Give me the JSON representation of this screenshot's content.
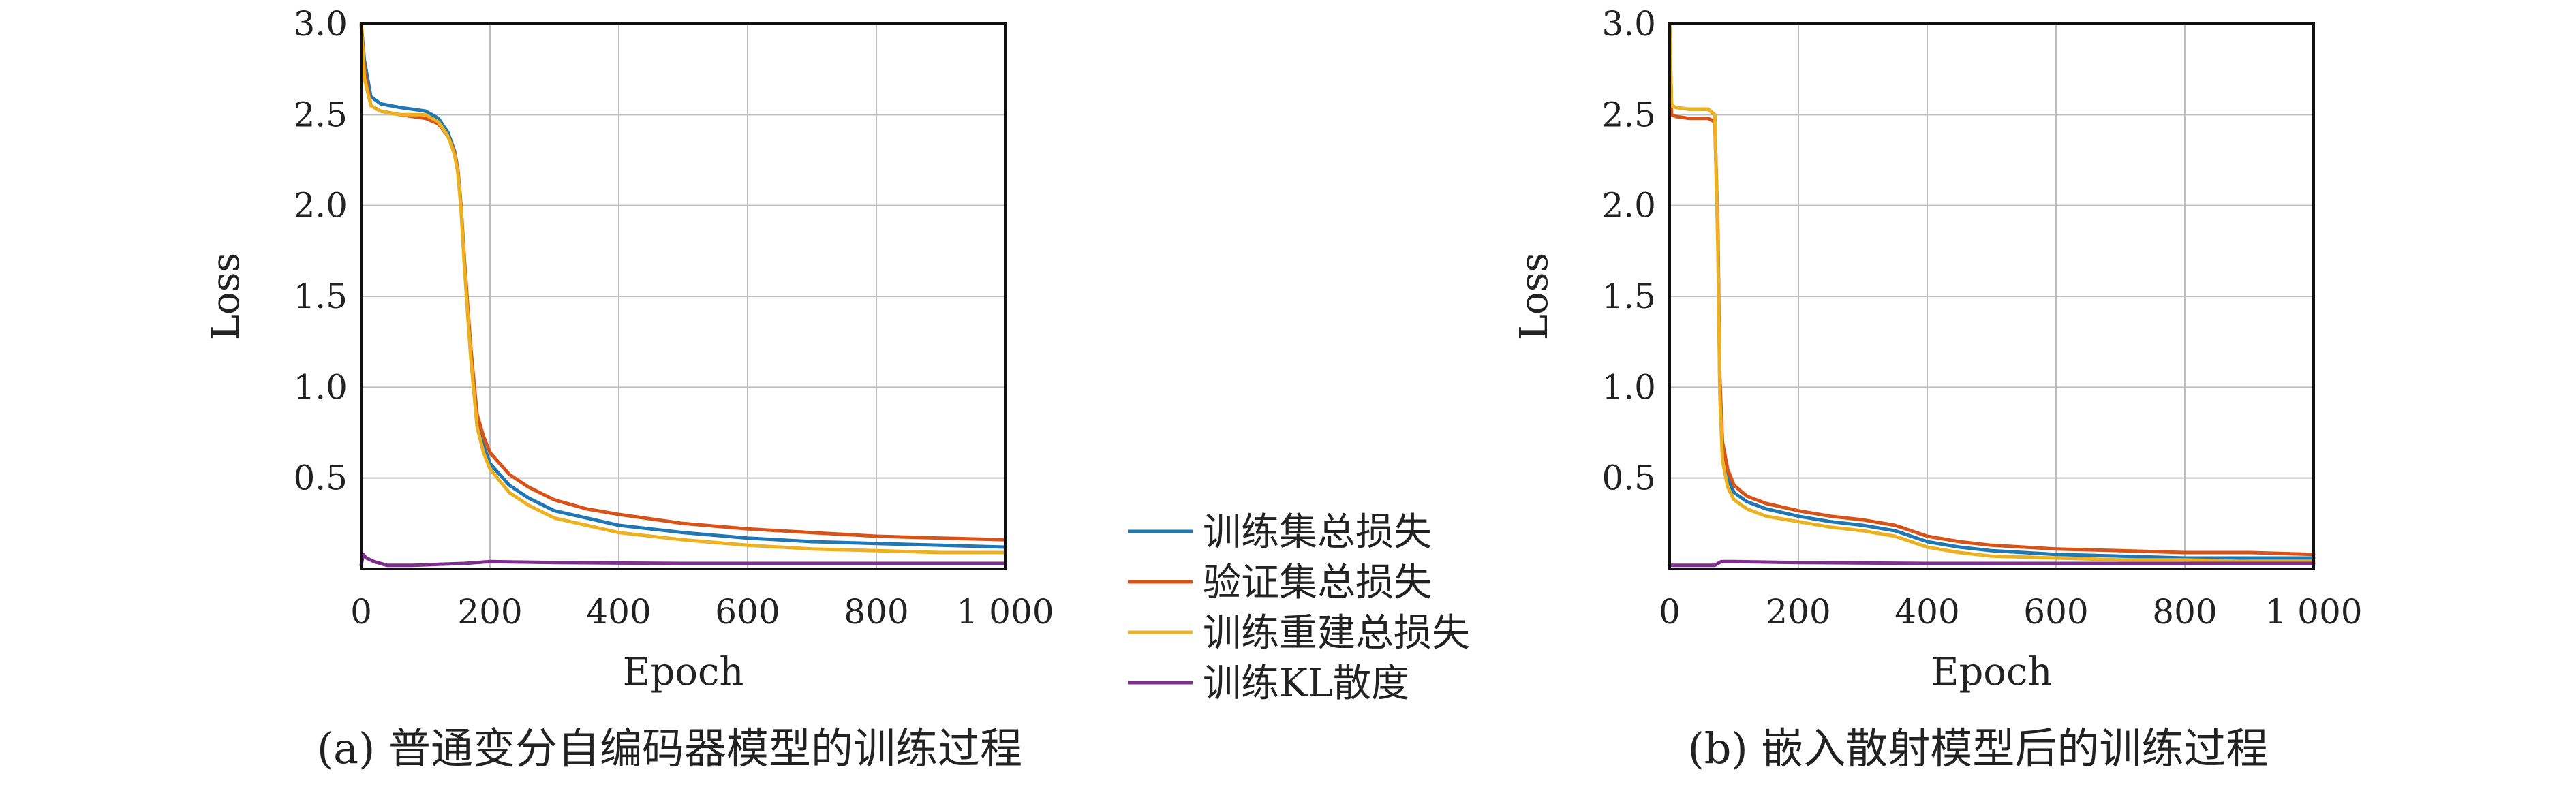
{
  "legend": [
    {
      "label": "训练集总损失",
      "color": "#1f77b4"
    },
    {
      "label": "验证集总损失",
      "color": "#d95319"
    },
    {
      "label": "训练重建总损失",
      "color": "#edb120"
    },
    {
      "label": "训练KL散度",
      "color": "#7e2f8e"
    }
  ],
  "chart_data": [
    {
      "type": "line",
      "caption": "(a) 普通变分自编码器模型的训练过程",
      "xlabel": "Epoch",
      "ylabel": "Loss",
      "xlim": [
        0,
        1000
      ],
      "ylim": [
        0,
        3.0
      ],
      "xticks": [
        0,
        200,
        400,
        600,
        800,
        1000
      ],
      "xtick_labels": [
        "0",
        "200",
        "400",
        "600",
        "800",
        "1 000"
      ],
      "yticks": [
        0.5,
        1.0,
        1.5,
        2.0,
        2.5,
        3.0
      ],
      "ytick_labels": [
        "0.5",
        "1.0",
        "1.5",
        "2.0",
        "2.5",
        "3.0"
      ],
      "grid": true,
      "series": [
        {
          "name": "训练集总损失",
          "color": "#1f77b4",
          "x": [
            0,
            5,
            15,
            30,
            60,
            100,
            120,
            135,
            145,
            150,
            155,
            160,
            165,
            170,
            175,
            180,
            190,
            200,
            230,
            260,
            300,
            350,
            400,
            500,
            600,
            700,
            800,
            900,
            1000
          ],
          "y": [
            3.0,
            2.8,
            2.6,
            2.56,
            2.54,
            2.52,
            2.48,
            2.4,
            2.3,
            2.2,
            2.0,
            1.7,
            1.45,
            1.2,
            1.0,
            0.82,
            0.68,
            0.58,
            0.46,
            0.39,
            0.32,
            0.28,
            0.24,
            0.2,
            0.17,
            0.15,
            0.14,
            0.13,
            0.12
          ]
        },
        {
          "name": "验证集总损失",
          "color": "#d95319",
          "x": [
            0,
            5,
            15,
            30,
            60,
            100,
            120,
            135,
            145,
            150,
            155,
            160,
            165,
            170,
            175,
            180,
            190,
            200,
            230,
            260,
            300,
            350,
            400,
            500,
            600,
            700,
            800,
            900,
            1000
          ],
          "y": [
            3.0,
            2.75,
            2.55,
            2.52,
            2.5,
            2.48,
            2.45,
            2.38,
            2.29,
            2.2,
            2.0,
            1.72,
            1.47,
            1.23,
            1.03,
            0.85,
            0.73,
            0.64,
            0.52,
            0.45,
            0.38,
            0.33,
            0.3,
            0.25,
            0.22,
            0.2,
            0.18,
            0.17,
            0.16
          ]
        },
        {
          "name": "训练重建总损失",
          "color": "#edb120",
          "x": [
            0,
            5,
            15,
            30,
            60,
            100,
            120,
            135,
            145,
            150,
            155,
            160,
            165,
            170,
            175,
            180,
            190,
            200,
            230,
            260,
            300,
            350,
            400,
            500,
            600,
            700,
            800,
            900,
            1000
          ],
          "y": [
            3.0,
            2.7,
            2.55,
            2.52,
            2.5,
            2.5,
            2.46,
            2.38,
            2.28,
            2.18,
            1.98,
            1.68,
            1.42,
            1.17,
            0.97,
            0.78,
            0.64,
            0.55,
            0.42,
            0.35,
            0.28,
            0.24,
            0.2,
            0.16,
            0.13,
            0.11,
            0.1,
            0.09,
            0.09
          ]
        },
        {
          "name": "训练KL散度",
          "color": "#7e2f8e",
          "x": [
            0,
            3,
            8,
            20,
            40,
            80,
            120,
            160,
            200,
            300,
            500,
            700,
            1000
          ],
          "y": [
            0.02,
            0.08,
            0.06,
            0.04,
            0.02,
            0.02,
            0.025,
            0.03,
            0.04,
            0.035,
            0.03,
            0.03,
            0.03
          ]
        }
      ]
    },
    {
      "type": "line",
      "caption": "(b) 嵌入散射模型后的训练过程",
      "xlabel": "Epoch",
      "ylabel": "Loss",
      "xlim": [
        0,
        1000
      ],
      "ylim": [
        0,
        3.0
      ],
      "xticks": [
        0,
        200,
        400,
        600,
        800,
        1000
      ],
      "xtick_labels": [
        "0",
        "200",
        "400",
        "600",
        "800",
        "1 000"
      ],
      "yticks": [
        0.5,
        1.0,
        1.5,
        2.0,
        2.5,
        3.0
      ],
      "ytick_labels": [
        "0.5",
        "1.0",
        "1.5",
        "2.0",
        "2.5",
        "3.0"
      ],
      "grid": true,
      "series": [
        {
          "name": "训练集总损失",
          "color": "#1f77b4",
          "x": [
            0,
            3,
            10,
            30,
            60,
            70,
            75,
            78,
            82,
            90,
            100,
            120,
            150,
            200,
            250,
            300,
            350,
            400,
            450,
            500,
            600,
            700,
            800,
            900,
            1000
          ],
          "y": [
            3.0,
            2.55,
            2.54,
            2.53,
            2.53,
            2.5,
            1.8,
            1.0,
            0.65,
            0.5,
            0.42,
            0.37,
            0.33,
            0.29,
            0.26,
            0.24,
            0.21,
            0.15,
            0.12,
            0.1,
            0.08,
            0.07,
            0.06,
            0.06,
            0.06
          ]
        },
        {
          "name": "验证集总损失",
          "color": "#d95319",
          "x": [
            0,
            3,
            10,
            30,
            60,
            70,
            75,
            78,
            82,
            90,
            100,
            120,
            150,
            200,
            250,
            300,
            350,
            400,
            450,
            500,
            600,
            700,
            800,
            900,
            1000
          ],
          "y": [
            3.0,
            2.5,
            2.49,
            2.48,
            2.48,
            2.46,
            1.85,
            1.05,
            0.7,
            0.55,
            0.46,
            0.4,
            0.36,
            0.32,
            0.29,
            0.27,
            0.24,
            0.18,
            0.15,
            0.13,
            0.11,
            0.1,
            0.09,
            0.09,
            0.08
          ]
        },
        {
          "name": "训练重建总损失",
          "color": "#edb120",
          "x": [
            0,
            3,
            10,
            30,
            60,
            70,
            75,
            78,
            82,
            90,
            100,
            120,
            150,
            200,
            250,
            300,
            350,
            400,
            450,
            500,
            600,
            700,
            800,
            900,
            1000
          ],
          "y": [
            3.0,
            2.55,
            2.54,
            2.53,
            2.53,
            2.5,
            1.75,
            0.95,
            0.6,
            0.45,
            0.38,
            0.33,
            0.29,
            0.26,
            0.23,
            0.21,
            0.18,
            0.12,
            0.09,
            0.07,
            0.06,
            0.05,
            0.05,
            0.04,
            0.04
          ]
        },
        {
          "name": "训练KL散度",
          "color": "#7e2f8e",
          "x": [
            0,
            10,
            40,
            60,
            70,
            75,
            80,
            100,
            200,
            400,
            600,
            1000
          ],
          "y": [
            0.02,
            0.02,
            0.02,
            0.02,
            0.02,
            0.03,
            0.04,
            0.04,
            0.035,
            0.03,
            0.03,
            0.03
          ]
        }
      ]
    }
  ]
}
